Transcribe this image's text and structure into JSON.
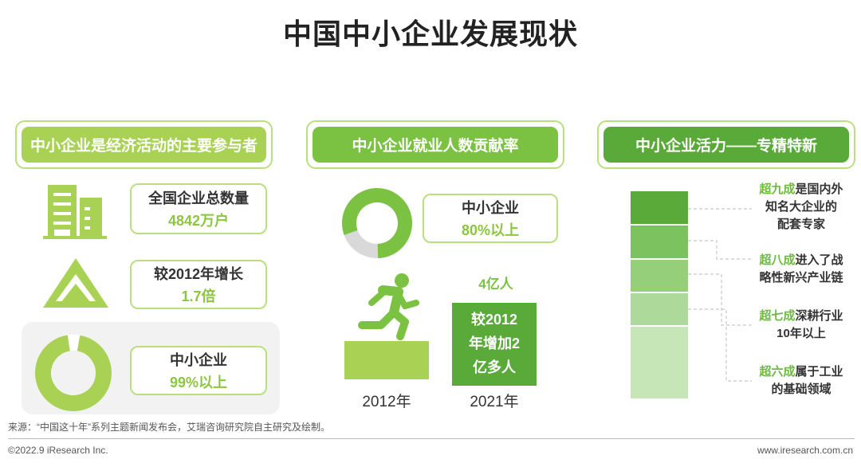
{
  "title": "中国中小企业发展现状",
  "col1": {
    "header": "中小企业是经济活动的主要参与者",
    "stats": [
      {
        "line1": "全国企业总数量",
        "line2": "4842万户"
      },
      {
        "line1": "较2012年增长",
        "line2": "1.7倍"
      },
      {
        "line1": "中小企业",
        "line2": "99%以上"
      }
    ]
  },
  "col2": {
    "header": "中小企业就业人数贡献率",
    "stat": {
      "line1": "中小企业",
      "line2": "80%以上"
    },
    "bar_top_label": "4亿人",
    "bar_text": [
      "较2012",
      "年增加2",
      "亿多人"
    ],
    "years": [
      "2012年",
      "2021年"
    ]
  },
  "col3": {
    "header": "中小企业活力——专精特新",
    "labels": [
      {
        "hl": "超九成",
        "rest1": "是国内外",
        "rest2": "知名大企业的",
        "rest3": "配",
        "rest4": "套专家"
      },
      {
        "hl": "超八成",
        "rest1": "进入了战",
        "rest2": "略性新兴产业链"
      },
      {
        "hl": "超七成",
        "rest1": "深耕行业",
        "rest2": "10年以上"
      },
      {
        "hl": "超六成",
        "rest1": "属于工业",
        "rest2": "的基础领域"
      }
    ]
  },
  "footer": {
    "source": "来源：“中国这十年”系列主题新闻发布会，艾瑞咨询研究院自主研究及绘制。",
    "copyright": "©2022.9 iResearch Inc.",
    "site": "www.iresearch.com.cn"
  },
  "colors": {
    "green_dark": "#5aaa3a",
    "green_light": "#a9d255",
    "green_mid": "#7cc242",
    "border": "#b9df7f"
  }
}
